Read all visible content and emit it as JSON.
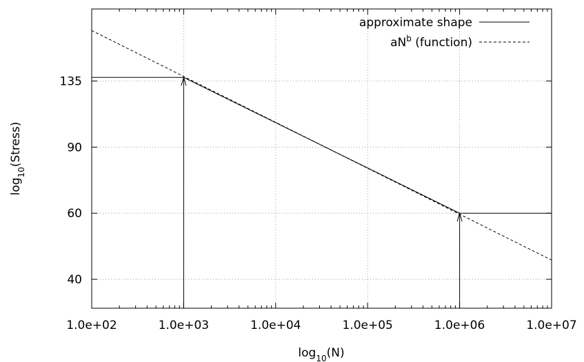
{
  "chart_data": {
    "type": "line",
    "xlabel": {
      "base": "log",
      "sub": "10",
      "rest": "(N)"
    },
    "ylabel": {
      "base": "log",
      "sub": "10",
      "rest": "(Stress)"
    },
    "x_scale": "log",
    "y_scale": "log",
    "xlim": [
      100,
      10000000
    ],
    "ylim": [
      33.5,
      210
    ],
    "x_ticks": [
      {
        "value": 100,
        "label": "1.0e+02"
      },
      {
        "value": 1000,
        "label": "1.0e+03"
      },
      {
        "value": 10000,
        "label": "1.0e+04"
      },
      {
        "value": 100000,
        "label": "1.0e+05"
      },
      {
        "value": 1000000,
        "label": "1.0e+06"
      },
      {
        "value": 10000000,
        "label": "1.0e+07"
      }
    ],
    "y_ticks": [
      {
        "value": 40,
        "label": "40"
      },
      {
        "value": 60,
        "label": "60"
      },
      {
        "value": 90,
        "label": "90"
      },
      {
        "value": 135,
        "label": "135"
      }
    ],
    "grid": true,
    "legend_position": "top-right",
    "series": [
      {
        "name": "approximate shape",
        "style": "solid",
        "color": "#000000",
        "x": [
          100,
          1000,
          1000000,
          10000000
        ],
        "y": [
          138,
          138,
          60,
          60
        ]
      },
      {
        "name": "aN (function)",
        "legend_main": "aN",
        "legend_sup": "b",
        "legend_rest": " (function)",
        "style": "dashed",
        "color": "#000000",
        "x": [
          100,
          10000000
        ],
        "y": [
          184,
          45
        ]
      }
    ],
    "arrows": [
      {
        "x": 1000,
        "y_from": 33.5,
        "y_to": 138
      },
      {
        "x": 1000000,
        "y_from": 33.5,
        "y_to": 60
      }
    ]
  }
}
